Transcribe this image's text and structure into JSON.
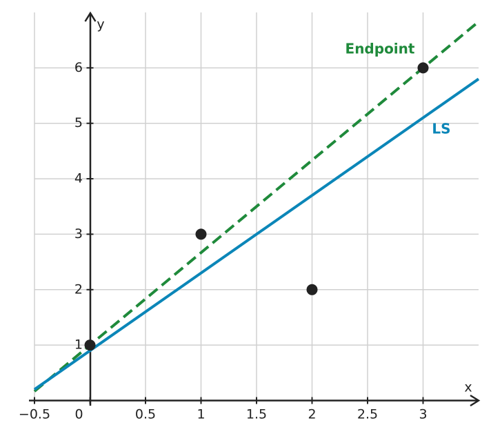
{
  "chart_data": {
    "type": "line",
    "x_label": "x",
    "y_label": "y",
    "xlim": [
      -0.5,
      3.5
    ],
    "ylim": [
      0,
      7
    ],
    "xticks": [
      {
        "value": -0.5,
        "label": "−0.5"
      },
      0,
      0.5,
      1,
      1.5,
      2,
      2.5,
      3
    ],
    "yticks": [
      1,
      2,
      3,
      4,
      5,
      6
    ],
    "grid": true,
    "series": [
      {
        "name": "Endpoint",
        "color": "#1f8a3b",
        "dashed": true,
        "x": [
          -0.5,
          3.5
        ],
        "values": [
          0.1667,
          6.8333
        ]
      },
      {
        "name": "LS",
        "color": "#0b86b8",
        "dashed": false,
        "x": [
          -0.5,
          3.5
        ],
        "values": [
          0.2,
          5.8
        ]
      }
    ],
    "points": {
      "color": "#222222",
      "x": [
        0,
        1,
        2,
        3
      ],
      "values": [
        1,
        3,
        2,
        6
      ]
    }
  }
}
